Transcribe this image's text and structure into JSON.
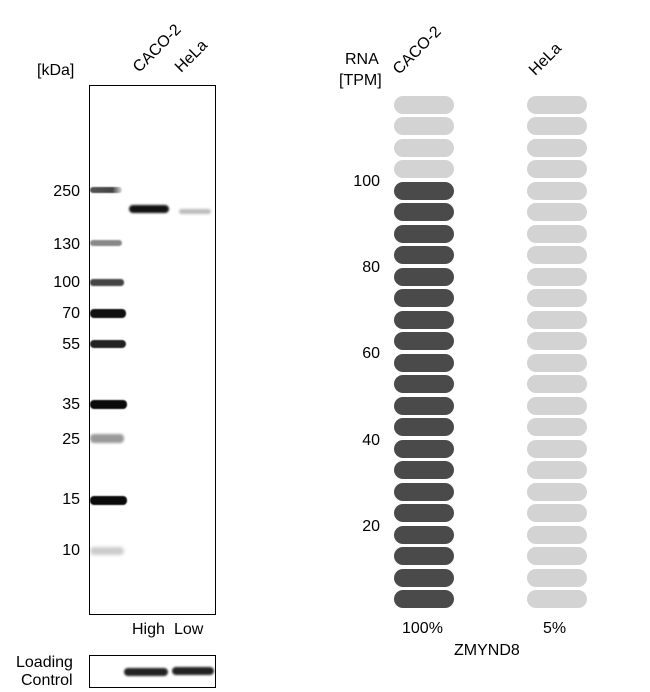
{
  "western_blot": {
    "unit_label": "[kDa]",
    "lanes": [
      "CACO-2",
      "HeLa"
    ],
    "markers": [
      "250",
      "130",
      "100",
      "70",
      "55",
      "35",
      "25",
      "15",
      "10"
    ],
    "expression_labels": [
      "High",
      "Low"
    ],
    "loading_control_line1": "Loading",
    "loading_control_line2": "Control"
  },
  "rna": {
    "header_line1": "RNA",
    "header_line2": "[TPM]",
    "cell_lines": [
      "CACO-2",
      "HeLa"
    ],
    "axis_ticks": [
      "100",
      "80",
      "60",
      "40",
      "20"
    ],
    "percentages": [
      "100%",
      "5%"
    ],
    "gene": "ZMYND8",
    "total_units": 24,
    "filled_units": [
      20,
      0
    ],
    "colors": {
      "filled": "#4a4a4a",
      "empty": "#d3d3d3"
    }
  }
}
